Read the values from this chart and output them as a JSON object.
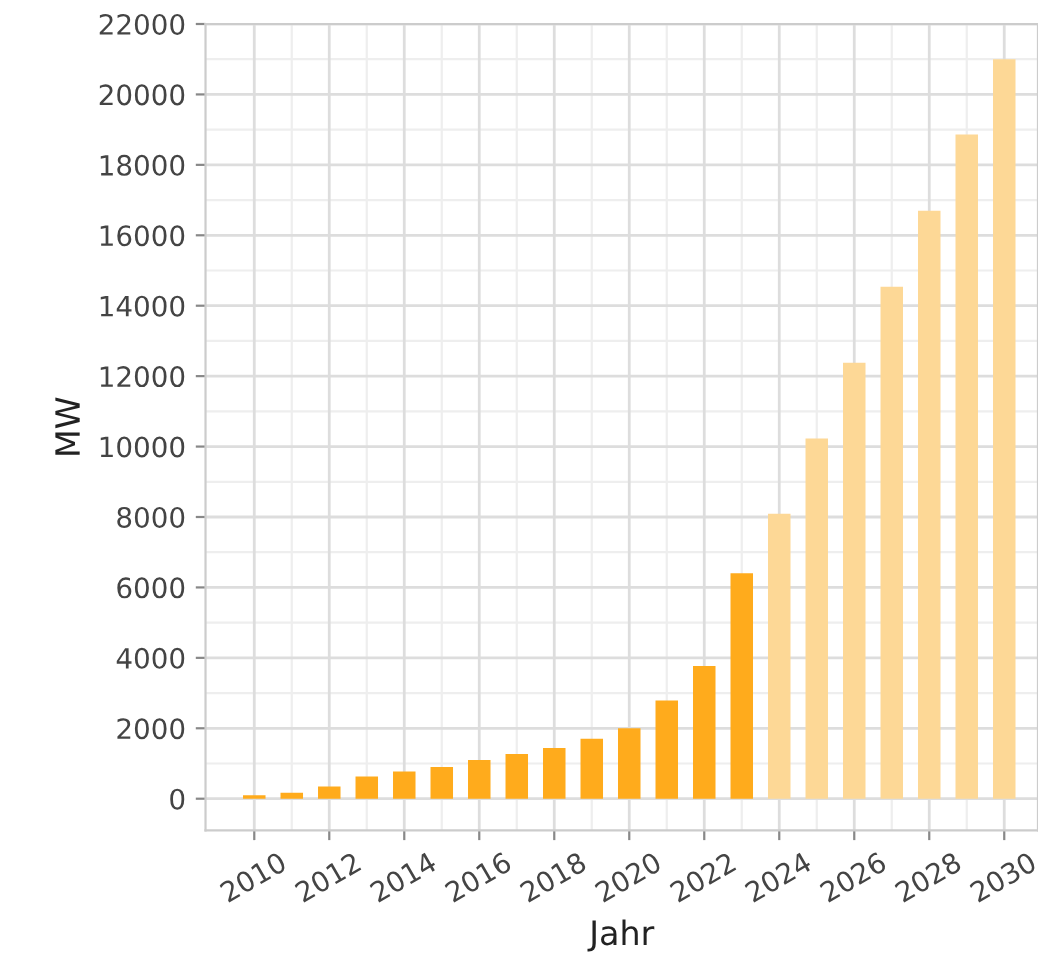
{
  "chart_data": {
    "type": "bar",
    "xlabel": "Jahr",
    "ylabel": "MW",
    "x": [
      2010,
      2011,
      2012,
      2013,
      2014,
      2015,
      2016,
      2017,
      2018,
      2019,
      2020,
      2021,
      2022,
      2023,
      2024,
      2025,
      2026,
      2027,
      2028,
      2029,
      2030
    ],
    "values": [
      100,
      170,
      350,
      630,
      770,
      900,
      1100,
      1270,
      1440,
      1700,
      2000,
      2790,
      3770,
      6400,
      8090,
      10230,
      12380,
      14540,
      16700,
      18860,
      21000
    ],
    "colors": [
      "#ffab1c",
      "#ffab1c",
      "#ffab1c",
      "#ffab1c",
      "#ffab1c",
      "#ffab1c",
      "#ffab1c",
      "#ffab1c",
      "#ffab1c",
      "#ffab1c",
      "#ffab1c",
      "#ffab1c",
      "#ffab1c",
      "#ffab1c",
      "#fdd896",
      "#fdd896",
      "#fdd896",
      "#fdd896",
      "#fdd896",
      "#fdd896",
      "#fdd896"
    ],
    "xlim": [
      2008.7,
      2030.9
    ],
    "xticks": [
      2010,
      2012,
      2014,
      2016,
      2018,
      2020,
      2022,
      2024,
      2026,
      2028,
      2030
    ],
    "ylim": [
      -900,
      22000
    ],
    "yticks": [
      0,
      2000,
      4000,
      6000,
      8000,
      10000,
      12000,
      14000,
      16000,
      18000,
      20000,
      22000
    ],
    "grid": true
  }
}
